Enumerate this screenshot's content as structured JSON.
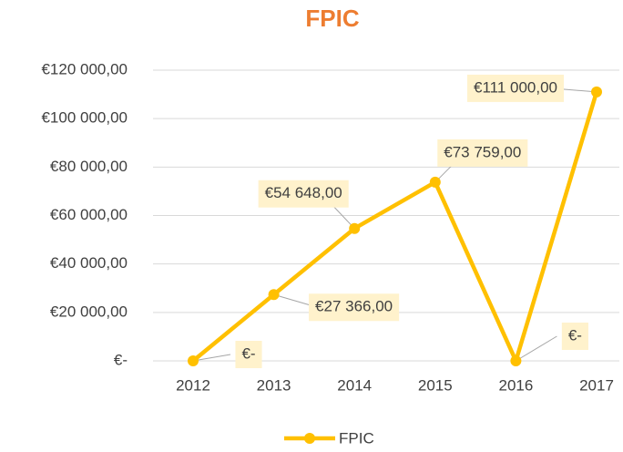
{
  "chart_data": {
    "type": "line",
    "title": "FPIC",
    "categories": [
      "2012",
      "2013",
      "2014",
      "2015",
      "2016",
      "2017"
    ],
    "series": [
      {
        "name": "FPIC",
        "color": "#ffc000",
        "values": [
          0,
          27366,
          54648,
          73759,
          0,
          111000
        ],
        "value_labels": [
          "€-",
          "€27 366,00",
          "€54 648,00",
          "€73 759,00",
          "€-",
          "€111 000,00"
        ]
      }
    ],
    "ylim": [
      0,
      120000
    ],
    "yticks": [
      {
        "value": 0,
        "label": "€-"
      },
      {
        "value": 20000,
        "label": "€20 000,00"
      },
      {
        "value": 40000,
        "label": "€40 000,00"
      },
      {
        "value": 60000,
        "label": "€60 000,00"
      },
      {
        "value": 80000,
        "label": "€80 000,00"
      },
      {
        "value": 100000,
        "label": "€100 000,00"
      },
      {
        "value": 120000,
        "label": "€120 000,00"
      }
    ],
    "grid": true,
    "legend": "bottom"
  }
}
